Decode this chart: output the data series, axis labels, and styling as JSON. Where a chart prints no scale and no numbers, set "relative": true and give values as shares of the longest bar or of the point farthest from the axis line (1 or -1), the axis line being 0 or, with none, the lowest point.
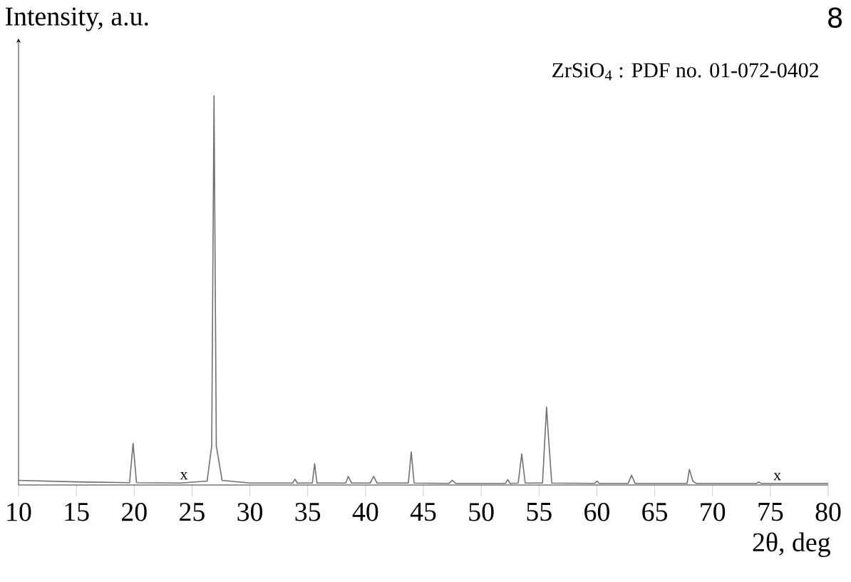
{
  "chart_data": {
    "type": "line",
    "relative": true,
    "xlabel": "2θ, deg",
    "ylabel": "Intensity, a.u.",
    "color": "#707070",
    "annotations": [
      "ZrSiO$_{4}$ : PDF no. 01-072-0402",
      "8",
      {
        "text": "x",
        "x": 24.3,
        "y": 0.01
      },
      {
        "text": "x",
        "x": 75.6,
        "y": 0.008
      }
    ],
    "xlim": [
      10,
      80
    ],
    "xticks": [
      10,
      15,
      20,
      25,
      30,
      35,
      40,
      45,
      50,
      55,
      60,
      65,
      70,
      75,
      80
    ],
    "x": [
      10,
      15,
      19.6,
      19.9,
      20.2,
      24,
      26.3,
      26.7,
      26.9,
      27.1,
      27.6,
      30,
      33.7,
      33.9,
      34.1,
      35.4,
      35.6,
      35.8,
      38.3,
      38.5,
      38.8,
      40.4,
      40.7,
      41.0,
      43.7,
      43.95,
      44.2,
      47.2,
      47.5,
      47.8,
      52.1,
      52.3,
      52.5,
      53.2,
      53.5,
      53.8,
      55.3,
      55.65,
      55.8,
      56.1,
      59.8,
      60.0,
      60.2,
      62.7,
      63.0,
      63.3,
      67.8,
      68.0,
      68.3,
      68.6,
      73.8,
      74.0,
      74.2,
      80
    ],
    "values": [
      0.012,
      0.008,
      0.006,
      0.107,
      0.006,
      0.005,
      0.01,
      0.1,
      1.0,
      0.1,
      0.012,
      0.005,
      0.005,
      0.015,
      0.005,
      0.005,
      0.055,
      0.005,
      0.005,
      0.022,
      0.005,
      0.005,
      0.022,
      0.005,
      0.005,
      0.085,
      0.005,
      0.004,
      0.012,
      0.004,
      0.004,
      0.014,
      0.004,
      0.005,
      0.08,
      0.005,
      0.005,
      0.2,
      0.13,
      0.005,
      0.004,
      0.01,
      0.004,
      0.004,
      0.025,
      0.004,
      0.004,
      0.04,
      0.01,
      0.004,
      0.004,
      0.008,
      0.004,
      0.004
    ]
  }
}
